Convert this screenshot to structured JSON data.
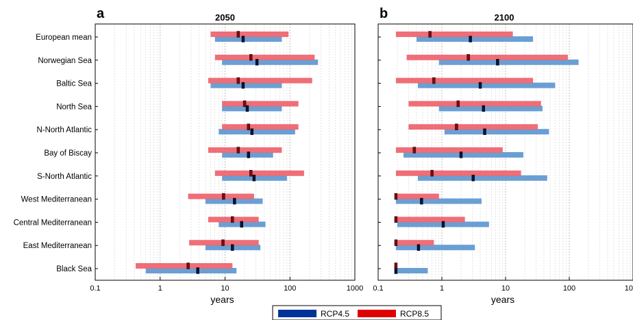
{
  "chart_data": {
    "type": "bar",
    "subtype": "horizontal-range-with-median",
    "xscale": "log",
    "xlim": [
      0.1,
      1000
    ],
    "xticks": [
      "0.1",
      "1",
      "10",
      "100",
      "1000"
    ],
    "xlabel": "years",
    "grid": true,
    "legend_position": "bottom-center",
    "categories": [
      "European mean",
      "Norwegian Sea",
      "Baltic Sea",
      "North Sea",
      "N-North Atlantic",
      "Bay of Biscay",
      "S-North Atlantic",
      "West Mediterranean",
      "Central Mediterranean",
      "East Mediterranean",
      "Black Sea"
    ],
    "series": [
      {
        "name": "RCP4.5",
        "color": "#003399",
        "bar_color": "#6a9fd4",
        "marker_color": "#0a1030"
      },
      {
        "name": "RCP8.5",
        "color": "#dd0000",
        "bar_color": "#ee6670",
        "marker_color": "#7a0a12"
      }
    ],
    "panels": [
      {
        "letter": "a",
        "title": "2050",
        "rcp45": [
          [
            7,
            19,
            75
          ],
          [
            9,
            31,
            270
          ],
          [
            6,
            19,
            75
          ],
          [
            9,
            22,
            75
          ],
          [
            8,
            26,
            120
          ],
          [
            9,
            23,
            55
          ],
          [
            9,
            28,
            90
          ],
          [
            5,
            14,
            38
          ],
          [
            8,
            18,
            42
          ],
          [
            5,
            13,
            35
          ],
          [
            0.6,
            3.8,
            15
          ]
        ],
        "rcp85": [
          [
            6,
            16,
            95
          ],
          [
            7,
            25,
            240
          ],
          [
            5.5,
            16,
            220
          ],
          [
            9,
            20,
            135
          ],
          [
            9,
            23,
            135
          ],
          [
            5.5,
            16,
            75
          ],
          [
            7,
            25,
            165
          ],
          [
            2.7,
            9.5,
            28
          ],
          [
            5.5,
            13,
            33
          ],
          [
            2.8,
            9.3,
            33
          ],
          [
            0.42,
            2.7,
            13
          ]
        ]
      },
      {
        "letter": "b",
        "title": "2100",
        "rcp45": [
          [
            0.4,
            2.8,
            27
          ],
          [
            0.9,
            7.5,
            140
          ],
          [
            0.42,
            4,
            60
          ],
          [
            0.9,
            4.5,
            38
          ],
          [
            1.1,
            4.7,
            48
          ],
          [
            0.25,
            2,
            19
          ],
          [
            0.42,
            3.1,
            45
          ],
          [
            0.19,
            0.48,
            4.2
          ],
          [
            0.2,
            1.05,
            5.5
          ],
          [
            0.19,
            0.43,
            3.3
          ],
          [
            0.18,
            0.19,
            0.6
          ]
        ],
        "rcp85": [
          [
            0.19,
            0.65,
            13
          ],
          [
            0.28,
            2.6,
            95
          ],
          [
            0.19,
            0.75,
            27
          ],
          [
            0.3,
            1.8,
            36
          ],
          [
            0.3,
            1.7,
            32
          ],
          [
            0.19,
            0.37,
            9
          ],
          [
            0.19,
            0.7,
            17.5
          ],
          [
            0.19,
            0.19,
            0.9
          ],
          [
            0.19,
            0.19,
            2.3
          ],
          [
            0.19,
            0.19,
            0.75
          ],
          [
            0.19,
            0.19,
            0.19
          ]
        ]
      }
    ]
  }
}
